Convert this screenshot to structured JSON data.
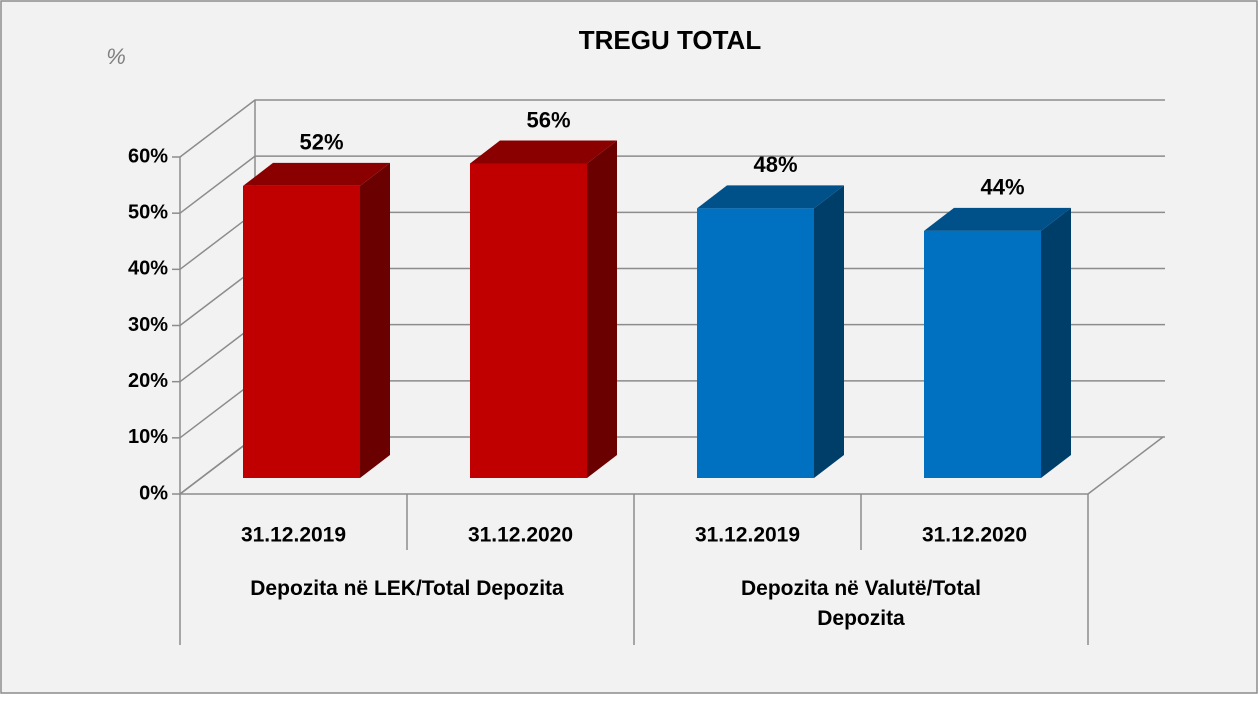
{
  "chart_data": {
    "type": "bar",
    "title": "TREGU TOTAL",
    "y_label": "%",
    "groups": [
      {
        "name": "Depozita në LEK/Total Depozita",
        "categories": [
          "31.12.2019",
          "31.12.2020"
        ],
        "values": [
          52,
          56
        ],
        "value_labels": [
          "52%",
          "56%"
        ],
        "color": "#c00000"
      },
      {
        "name": "Depozita në Valutë/Total Depozita",
        "categories": [
          "31.12.2019",
          "31.12.2020"
        ],
        "values": [
          48,
          44
        ],
        "value_labels": [
          "48%",
          "44%"
        ],
        "color": "#0070c0"
      }
    ],
    "ylim": [
      0,
      60
    ],
    "yticks": [
      {
        "value": 0,
        "label": "0%"
      },
      {
        "value": 10,
        "label": "10%"
      },
      {
        "value": 20,
        "label": "20%"
      },
      {
        "value": 30,
        "label": "30%"
      },
      {
        "value": 40,
        "label": "40%"
      },
      {
        "value": 50,
        "label": "50%"
      },
      {
        "value": 60,
        "label": "60%"
      }
    ],
    "grid": true
  }
}
